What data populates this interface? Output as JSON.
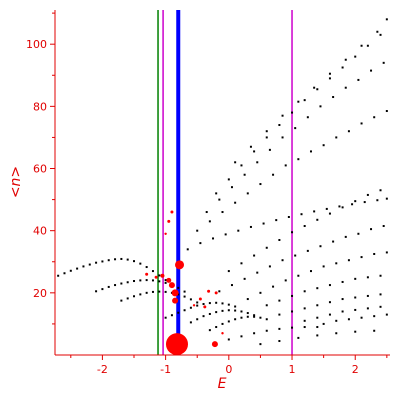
{
  "chart_data": {
    "type": "scatter",
    "title": "",
    "xlabel": "E",
    "ylabel": "<n>",
    "xlim": [
      -2.75,
      2.55
    ],
    "ylim": [
      0,
      111
    ],
    "xticks": [
      -2,
      -1,
      0,
      1,
      2
    ],
    "yticks": [
      20,
      40,
      60,
      80,
      100
    ],
    "grid": false,
    "legend": "none",
    "colors": {
      "axis": "#e00000",
      "points": "#000000",
      "markers": "#ff0000",
      "line_green": "#008000",
      "line_magenta": "#cc00cc",
      "line_blue": "#0000ff"
    },
    "vertical_lines": [
      {
        "x": -1.12,
        "color": "#008000",
        "width": 1.5
      },
      {
        "x": -1.04,
        "color": "#cc00cc",
        "width": 1.5
      },
      {
        "x": -0.8,
        "color": "#0000ff",
        "width": 4
      },
      {
        "x": 1.0,
        "color": "#cc00cc",
        "width": 1.5
      }
    ],
    "black_points": [
      [
        -2.7,
        25.5
      ],
      [
        -2.6,
        26.3
      ],
      [
        -2.5,
        27.1
      ],
      [
        -2.4,
        27.8
      ],
      [
        -2.3,
        28.5
      ],
      [
        -2.2,
        29.1
      ],
      [
        -2.1,
        29.7
      ],
      [
        -2.0,
        30.1
      ],
      [
        -1.9,
        30.5
      ],
      [
        -1.8,
        30.8
      ],
      [
        -1.7,
        30.9
      ],
      [
        -1.6,
        30.7
      ],
      [
        -1.5,
        30.2
      ],
      [
        -1.4,
        29.4
      ],
      [
        -1.3,
        28.3
      ],
      [
        -1.2,
        27.0
      ],
      [
        -1.1,
        25.6
      ],
      [
        -1.0,
        24.1
      ],
      [
        -2.1,
        20.5
      ],
      [
        -2.0,
        21.2
      ],
      [
        -1.9,
        21.9
      ],
      [
        -1.8,
        22.5
      ],
      [
        -1.7,
        23.0
      ],
      [
        -1.6,
        23.4
      ],
      [
        -1.5,
        23.8
      ],
      [
        -1.4,
        24.0
      ],
      [
        -1.3,
        24.1
      ],
      [
        -1.2,
        24.0
      ],
      [
        -1.1,
        23.7
      ],
      [
        -1.0,
        23.2
      ],
      [
        -0.9,
        22.5
      ],
      [
        -0.8,
        21.6
      ],
      [
        -0.7,
        20.4
      ],
      [
        -1.7,
        17.5
      ],
      [
        -1.6,
        18.2
      ],
      [
        -1.5,
        18.9
      ],
      [
        -1.4,
        19.5
      ],
      [
        -1.3,
        20.0
      ],
      [
        -1.2,
        20.3
      ],
      [
        -1.1,
        20.4
      ],
      [
        -1.0,
        20.3
      ],
      [
        -0.9,
        20.0
      ],
      [
        -0.8,
        19.5
      ],
      [
        -0.7,
        18.8
      ],
      [
        -0.6,
        17.9
      ],
      [
        -0.5,
        16.9
      ],
      [
        -1.0,
        12.0
      ],
      [
        -0.9,
        12.8
      ],
      [
        -0.8,
        13.6
      ],
      [
        -0.7,
        14.4
      ],
      [
        -0.6,
        15.2
      ],
      [
        -0.5,
        15.9
      ],
      [
        -0.4,
        16.4
      ],
      [
        -0.3,
        16.7
      ],
      [
        -0.2,
        16.8
      ],
      [
        -0.1,
        16.6
      ],
      [
        0.0,
        16.2
      ],
      [
        0.1,
        15.6
      ],
      [
        -0.6,
        10.5
      ],
      [
        -0.5,
        11.5
      ],
      [
        -0.4,
        12.5
      ],
      [
        -0.3,
        13.2
      ],
      [
        -0.2,
        13.8
      ],
      [
        -0.1,
        14.2
      ],
      [
        0.0,
        14.4
      ],
      [
        0.1,
        14.3
      ],
      [
        0.2,
        14.0
      ],
      [
        0.3,
        13.5
      ],
      [
        0.4,
        12.8
      ],
      [
        -0.3,
        8.0
      ],
      [
        -0.2,
        9.0
      ],
      [
        -0.1,
        10.0
      ],
      [
        0.0,
        10.8
      ],
      [
        0.1,
        11.5
      ],
      [
        0.2,
        12.0
      ],
      [
        0.3,
        12.3
      ],
      [
        0.4,
        12.3
      ],
      [
        0.5,
        12.0
      ],
      [
        0.6,
        11.5
      ],
      [
        0.0,
        5.0
      ],
      [
        0.2,
        6.0
      ],
      [
        0.4,
        7.0
      ],
      [
        0.6,
        7.8
      ],
      [
        0.8,
        8.4
      ],
      [
        1.0,
        8.8
      ],
      [
        1.2,
        9.0
      ],
      [
        1.4,
        9.0
      ],
      [
        0.5,
        3.5
      ],
      [
        0.8,
        4.5
      ],
      [
        1.1,
        5.5
      ],
      [
        1.4,
        6.3
      ],
      [
        1.7,
        7.0
      ],
      [
        2.0,
        7.5
      ],
      [
        2.3,
        7.8
      ],
      [
        -0.65,
        34.0
      ],
      [
        -0.45,
        36.0
      ],
      [
        -0.25,
        37.5
      ],
      [
        -0.05,
        38.8
      ],
      [
        0.15,
        40.0
      ],
      [
        0.35,
        41.2
      ],
      [
        0.55,
        42.3
      ],
      [
        0.75,
        43.4
      ],
      [
        0.95,
        44.4
      ],
      [
        1.15,
        45.3
      ],
      [
        1.35,
        46.2
      ],
      [
        1.55,
        47.0
      ],
      [
        1.75,
        47.8
      ],
      [
        1.95,
        48.5
      ],
      [
        2.15,
        49.2
      ],
      [
        2.35,
        49.8
      ],
      [
        2.5,
        50.3
      ],
      [
        -0.5,
        40.0
      ],
      [
        -0.3,
        43.0
      ],
      [
        -0.1,
        46.0
      ],
      [
        0.1,
        49.0
      ],
      [
        0.3,
        52.0
      ],
      [
        0.5,
        55.0
      ],
      [
        0.7,
        58.0
      ],
      [
        0.9,
        61.0
      ],
      [
        1.1,
        63.0
      ],
      [
        1.3,
        65.5
      ],
      [
        1.5,
        67.5
      ],
      [
        1.7,
        70.0
      ],
      [
        1.9,
        72.0
      ],
      [
        2.1,
        74.5
      ],
      [
        2.3,
        76.5
      ],
      [
        2.5,
        78.5
      ],
      [
        -0.35,
        46.0
      ],
      [
        -0.15,
        50.0
      ],
      [
        0.05,
        54.0
      ],
      [
        0.25,
        58.0
      ],
      [
        0.45,
        62.0
      ],
      [
        0.65,
        66.0
      ],
      [
        0.85,
        70.0
      ],
      [
        1.05,
        73.0
      ],
      [
        1.25,
        76.5
      ],
      [
        1.45,
        80.0
      ],
      [
        1.65,
        83.0
      ],
      [
        1.85,
        86.0
      ],
      [
        2.05,
        88.5
      ],
      [
        2.25,
        91.5
      ],
      [
        2.45,
        94.0
      ],
      [
        -0.2,
        52.0
      ],
      [
        0.0,
        56.5
      ],
      [
        0.2,
        61.0
      ],
      [
        0.4,
        65.5
      ],
      [
        0.6,
        70.0
      ],
      [
        0.8,
        74.0
      ],
      [
        1.0,
        78.0
      ],
      [
        1.2,
        82.0
      ],
      [
        1.4,
        85.5
      ],
      [
        1.6,
        89.0
      ],
      [
        1.8,
        92.5
      ],
      [
        2.0,
        96.0
      ],
      [
        2.2,
        99.5
      ],
      [
        2.4,
        103.0
      ],
      [
        0.1,
        62.0
      ],
      [
        0.35,
        67.0
      ],
      [
        0.6,
        72.0
      ],
      [
        0.85,
        77.0
      ],
      [
        1.1,
        81.5
      ],
      [
        1.35,
        86.0
      ],
      [
        1.6,
        90.5
      ],
      [
        1.85,
        95.0
      ],
      [
        2.1,
        99.5
      ],
      [
        2.35,
        104.0
      ],
      [
        2.5,
        108.0
      ],
      [
        -0.15,
        20.5
      ],
      [
        0.05,
        22.5
      ],
      [
        0.25,
        24.5
      ],
      [
        0.45,
        26.5
      ],
      [
        0.65,
        28.5
      ],
      [
        0.85,
        30.5
      ],
      [
        1.05,
        32.0
      ],
      [
        1.25,
        33.5
      ],
      [
        1.45,
        35.0
      ],
      [
        1.65,
        36.5
      ],
      [
        1.85,
        38.0
      ],
      [
        2.05,
        39.0
      ],
      [
        2.25,
        40.5
      ],
      [
        2.45,
        41.5
      ],
      [
        0.0,
        27.0
      ],
      [
        0.2,
        29.5
      ],
      [
        0.4,
        32.0
      ],
      [
        0.6,
        34.5
      ],
      [
        0.8,
        37.0
      ],
      [
        1.0,
        39.5
      ],
      [
        1.2,
        41.5
      ],
      [
        1.4,
        43.5
      ],
      [
        1.6,
        45.5
      ],
      [
        1.8,
        47.5
      ],
      [
        2.0,
        49.5
      ],
      [
        2.2,
        51.5
      ],
      [
        2.4,
        53.0
      ],
      [
        0.3,
        18.0
      ],
      [
        0.5,
        20.0
      ],
      [
        0.7,
        22.0
      ],
      [
        0.9,
        24.0
      ],
      [
        1.1,
        25.5
      ],
      [
        1.3,
        27.0
      ],
      [
        1.5,
        28.5
      ],
      [
        1.7,
        29.5
      ],
      [
        1.9,
        30.5
      ],
      [
        2.1,
        31.5
      ],
      [
        2.3,
        32.5
      ],
      [
        2.5,
        33.0
      ],
      [
        0.6,
        16.0
      ],
      [
        0.8,
        17.5
      ],
      [
        1.0,
        19.0
      ],
      [
        1.2,
        20.5
      ],
      [
        1.4,
        21.5
      ],
      [
        1.6,
        22.5
      ],
      [
        1.8,
        23.5
      ],
      [
        2.0,
        24.5
      ],
      [
        2.2,
        25.0
      ],
      [
        2.4,
        25.5
      ],
      [
        0.8,
        13.0
      ],
      [
        1.0,
        14.0
      ],
      [
        1.2,
        15.0
      ],
      [
        1.4,
        16.0
      ],
      [
        1.6,
        17.0
      ],
      [
        1.8,
        18.0
      ],
      [
        2.0,
        18.5
      ],
      [
        2.2,
        19.0
      ],
      [
        2.4,
        19.5
      ],
      [
        1.2,
        11.0
      ],
      [
        1.4,
        12.0
      ],
      [
        1.6,
        13.0
      ],
      [
        1.8,
        14.0
      ],
      [
        2.0,
        14.5
      ],
      [
        2.2,
        15.0
      ],
      [
        2.4,
        15.5
      ],
      [
        1.5,
        10.0
      ],
      [
        1.7,
        11.0
      ],
      [
        1.9,
        11.5
      ],
      [
        2.1,
        12.0
      ],
      [
        2.3,
        12.5
      ],
      [
        2.5,
        13.0
      ]
    ],
    "red_markers": [
      {
        "x": -0.82,
        "y": 3.5,
        "size": 11
      },
      {
        "x": -0.78,
        "y": 29.0,
        "size": 4.5
      },
      {
        "x": -0.85,
        "y": 20.0,
        "size": 3.5
      },
      {
        "x": -0.85,
        "y": 17.5,
        "size": 3
      },
      {
        "x": -0.9,
        "y": 22.5,
        "size": 3
      },
      {
        "x": -0.95,
        "y": 24.0,
        "size": 2.5
      },
      {
        "x": -1.05,
        "y": 25.5,
        "size": 2
      },
      {
        "x": -1.3,
        "y": 26.0,
        "size": 1.5
      },
      {
        "x": -1.15,
        "y": 25.0,
        "size": 1.5
      },
      {
        "x": -0.22,
        "y": 3.5,
        "size": 3
      },
      {
        "x": -0.32,
        "y": 20.5,
        "size": 1.5
      },
      {
        "x": -0.38,
        "y": 15.5,
        "size": 1.5
      },
      {
        "x": -0.45,
        "y": 18.0,
        "size": 1.5
      },
      {
        "x": -0.2,
        "y": 20.0,
        "size": 1.5
      },
      {
        "x": -0.9,
        "y": 46.0,
        "size": 1.5
      },
      {
        "x": -0.95,
        "y": 43.0,
        "size": 1.5
      },
      {
        "x": -1.0,
        "y": 39.0,
        "size": 1.2
      },
      {
        "x": -0.1,
        "y": 7.0,
        "size": 1.2
      },
      {
        "x": -0.55,
        "y": 16.0,
        "size": 1.2
      }
    ]
  }
}
